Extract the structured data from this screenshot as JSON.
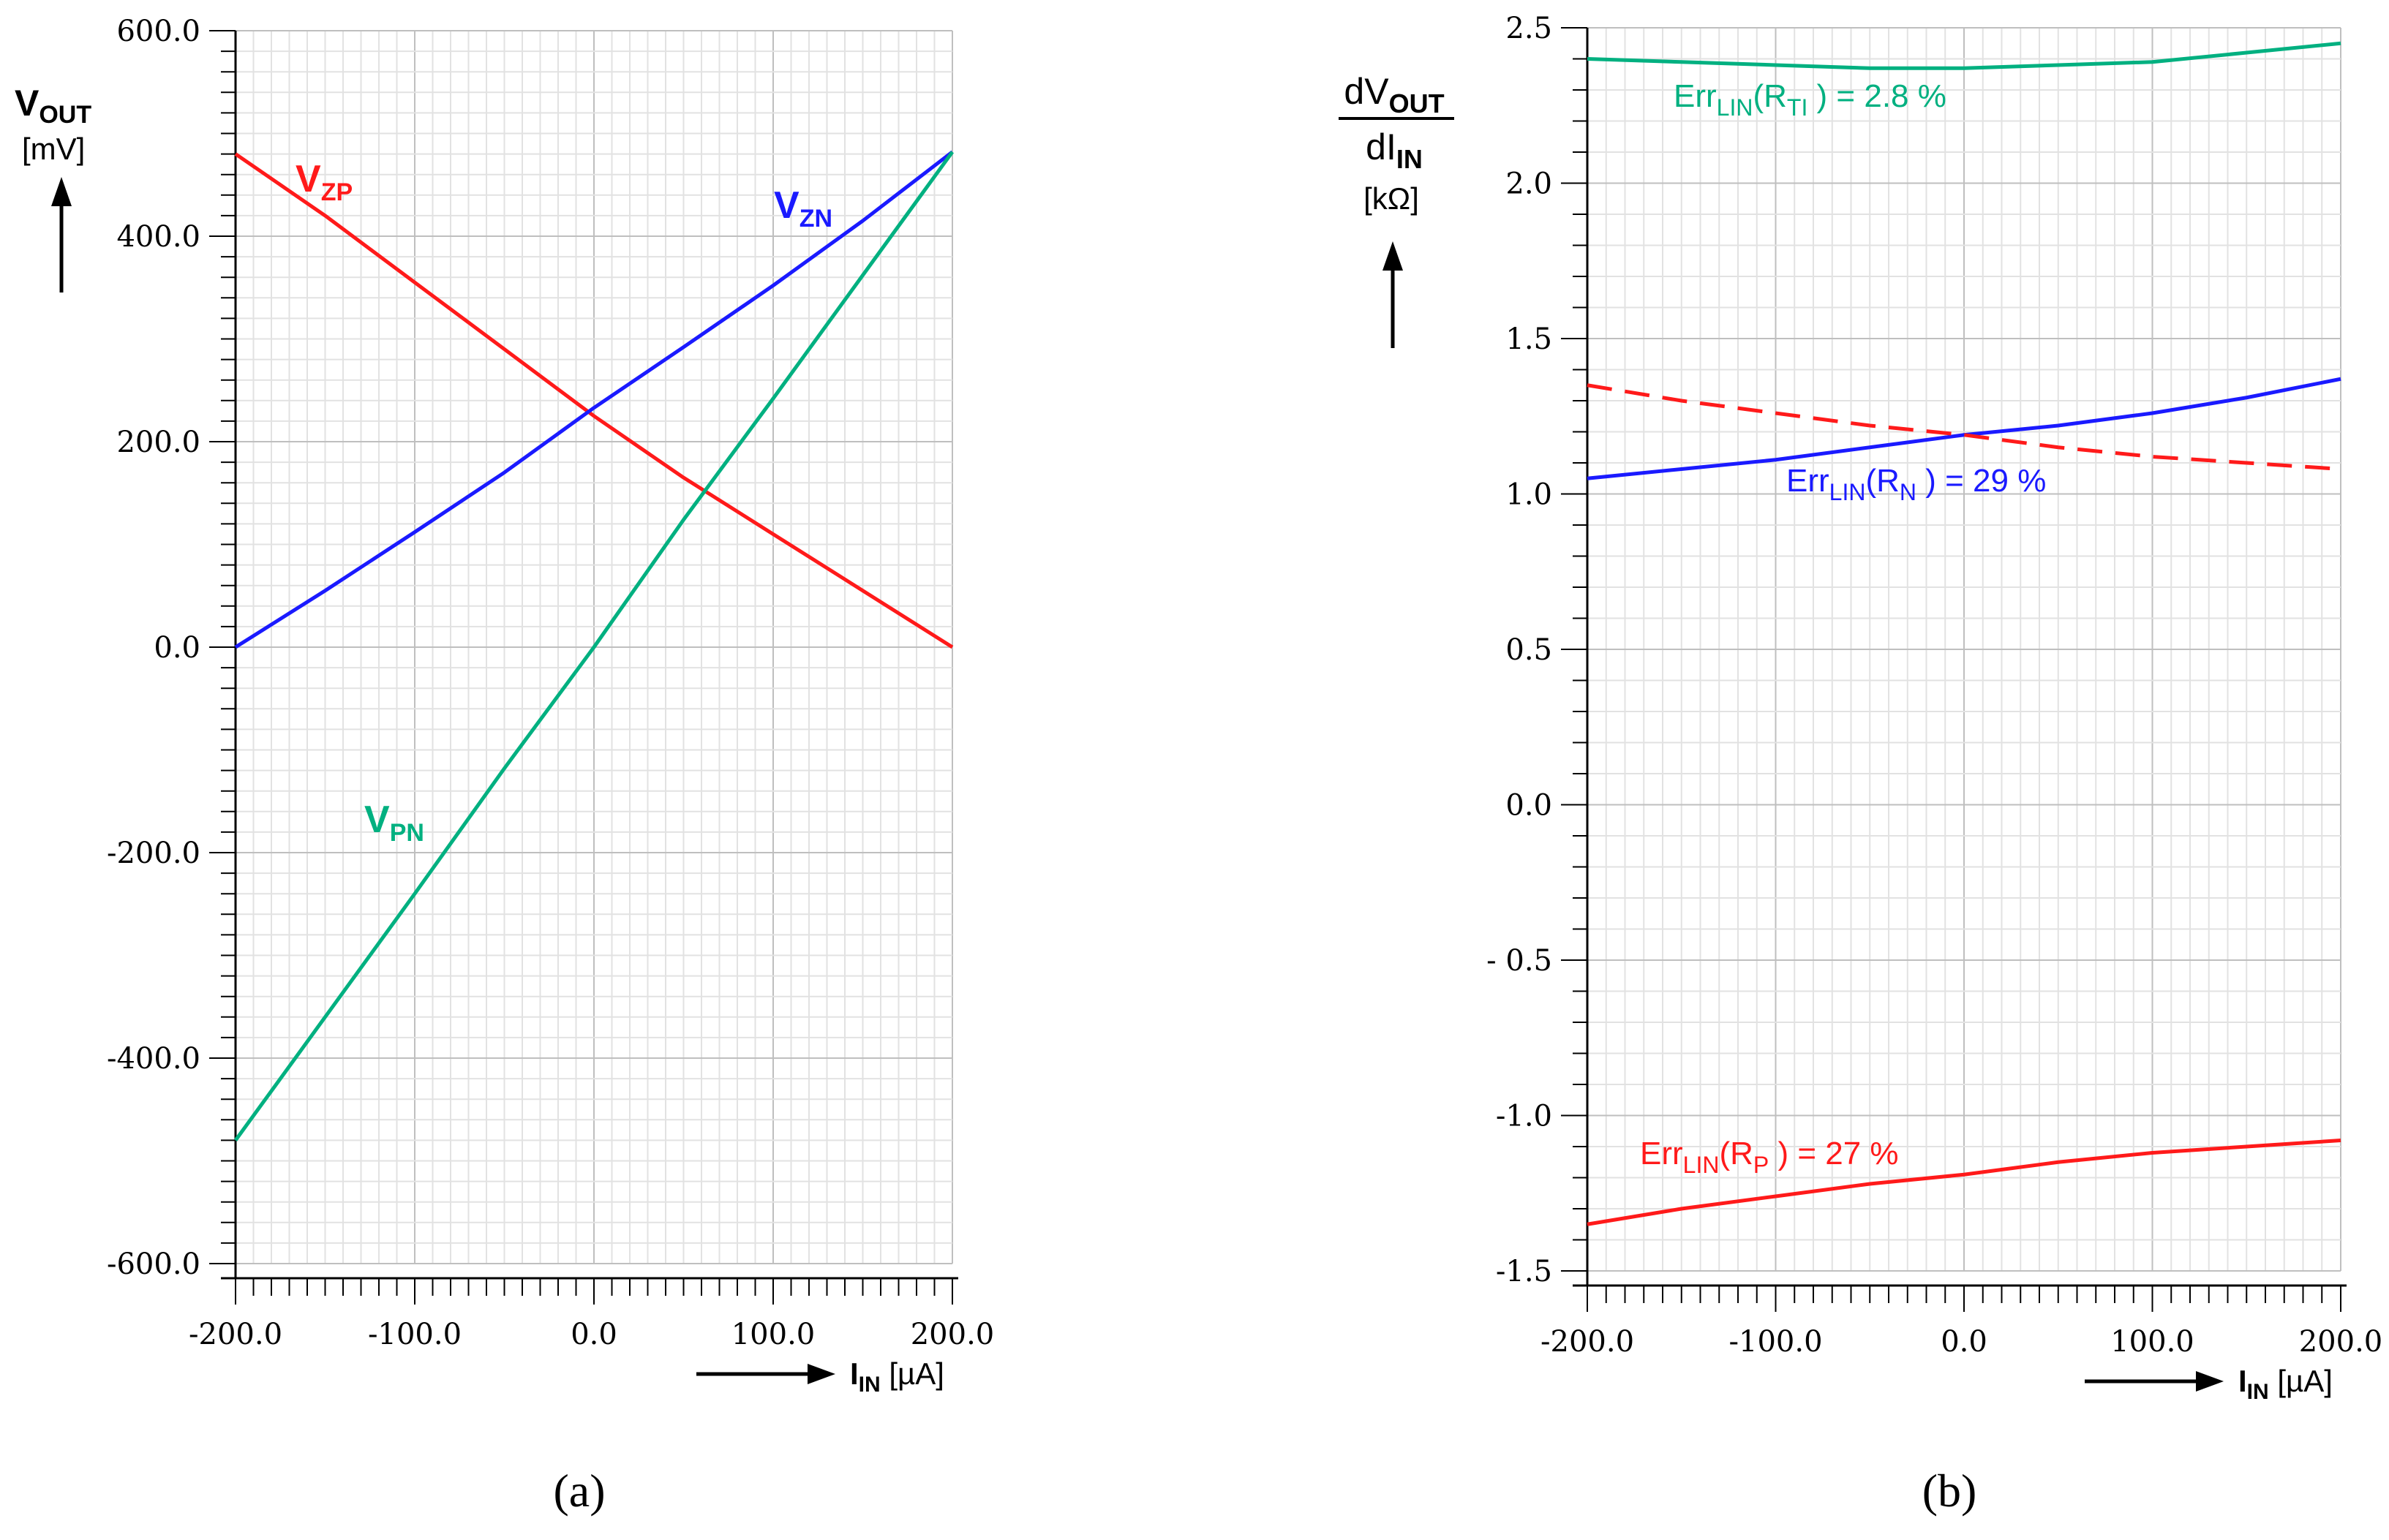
{
  "chart_data": [
    {
      "id": "a",
      "type": "line",
      "subfigure_label": "(a)",
      "ylabel": {
        "main": "V",
        "sub": "OUT",
        "unit": "[mV]"
      },
      "xlabel": {
        "main": "I",
        "sub": "IN",
        "unit": "[µA]"
      },
      "xlim": [
        -200,
        200
      ],
      "ylim": [
        -600,
        600
      ],
      "xticks": [
        "-200.0",
        "-100.0",
        "0.0",
        "100.0",
        "200.0"
      ],
      "yticks": [
        "-600.0",
        "-400.0",
        "-200.0",
        "0.0",
        "200.0",
        "400.0",
        "600.0"
      ],
      "grid": true,
      "series": [
        {
          "name": "V_ZP",
          "label_main": "V",
          "label_sub": "ZP",
          "color": "#ff1a1a",
          "x": [
            -200,
            -150,
            -100,
            -50,
            0,
            50,
            100,
            150,
            200
          ],
          "y": [
            480,
            420,
            355,
            290,
            225,
            165,
            110,
            55,
            0
          ]
        },
        {
          "name": "V_ZN",
          "label_main": "V",
          "label_sub": "ZN",
          "color": "#1a1aff",
          "x": [
            -200,
            -150,
            -100,
            -50,
            0,
            50,
            100,
            150,
            200
          ],
          "y": [
            0,
            55,
            112,
            170,
            233,
            292,
            352,
            415,
            482
          ]
        },
        {
          "name": "V_PN",
          "label_main": "V",
          "label_sub": "PN",
          "color": "#00b080",
          "x": [
            -200,
            -150,
            -100,
            -50,
            0,
            50,
            100,
            150,
            200
          ],
          "y": [
            -480,
            -360,
            -240,
            -118,
            0,
            124,
            242,
            362,
            482
          ]
        }
      ]
    },
    {
      "id": "b",
      "type": "line",
      "subfigure_label": "(b)",
      "ylabel": {
        "num_main": "dV",
        "num_sub": "OUT",
        "den_main": "dI",
        "den_sub": "IN",
        "unit": "[kΩ]"
      },
      "xlabel": {
        "main": "I",
        "sub": "IN",
        "unit": "[µA]"
      },
      "xlim": [
        -200,
        200
      ],
      "ylim": [
        -1.5,
        2.5
      ],
      "xticks": [
        "-200.0",
        "-100.0",
        "0.0",
        "100.0",
        "200.0"
      ],
      "yticks": [
        "-1.5",
        "-1.0",
        "- 0.5",
        "0.0",
        "0.5",
        "1.0",
        "1.5",
        "2.0",
        "2.5"
      ],
      "grid": true,
      "series": [
        {
          "name": "R_TI",
          "color": "#00b080",
          "dashed": false,
          "x": [
            -200,
            -150,
            -100,
            -50,
            0,
            50,
            100,
            150,
            200
          ],
          "y": [
            2.4,
            2.39,
            2.38,
            2.37,
            2.37,
            2.38,
            2.39,
            2.42,
            2.45
          ]
        },
        {
          "name": "R_N",
          "color": "#1a1aff",
          "dashed": false,
          "x": [
            -200,
            -150,
            -100,
            -50,
            0,
            50,
            100,
            150,
            200
          ],
          "y": [
            1.05,
            1.08,
            1.11,
            1.15,
            1.19,
            1.22,
            1.26,
            1.31,
            1.37
          ]
        },
        {
          "name": "R_P_mirror",
          "color": "#ff1a1a",
          "dashed": true,
          "x": [
            -200,
            -150,
            -100,
            -50,
            0,
            50,
            100,
            150,
            200
          ],
          "y": [
            1.35,
            1.3,
            1.26,
            1.22,
            1.19,
            1.15,
            1.12,
            1.1,
            1.08
          ]
        },
        {
          "name": "R_P",
          "color": "#ff1a1a",
          "dashed": false,
          "x": [
            -200,
            -150,
            -100,
            -50,
            0,
            50,
            100,
            150,
            200
          ],
          "y": [
            -1.35,
            -1.3,
            -1.26,
            -1.22,
            -1.19,
            -1.15,
            -1.12,
            -1.1,
            -1.08
          ]
        }
      ],
      "annotations": [
        {
          "series": "R_TI",
          "pre": "Err",
          "sub1": "LIN",
          "mid": "(R",
          "sub2": "TI",
          "post": ") = 2.8 %",
          "color": "#00b080"
        },
        {
          "series": "R_N",
          "pre": "Err",
          "sub1": "LIN",
          "mid": "(R",
          "sub2": "N",
          "post": ") = 29 %",
          "color": "#1a1aff"
        },
        {
          "series": "R_P",
          "pre": "Err",
          "sub1": "LIN",
          "mid": "(R",
          "sub2": "P",
          "post": ") = 27 %",
          "color": "#ff1a1a"
        }
      ]
    }
  ]
}
